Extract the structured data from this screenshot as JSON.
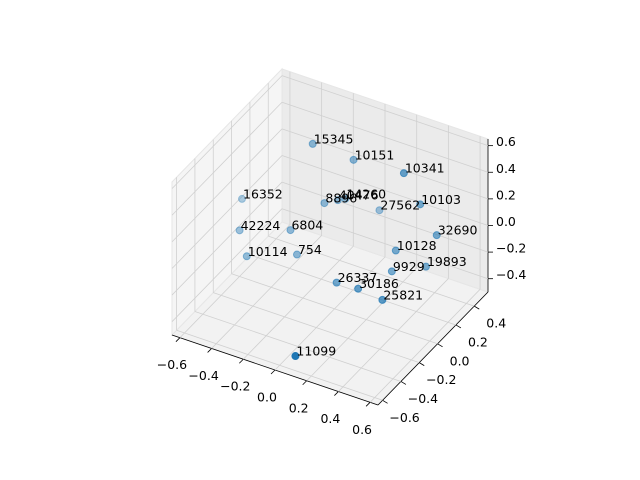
{
  "chart_data": {
    "type": "scatter3d",
    "labels": [
      "15345",
      "10151",
      "10341",
      "16352",
      "8896",
      "40476",
      "14260",
      "27562",
      "10103",
      "42224",
      "6804",
      "32690",
      "754",
      "10114",
      "10128",
      "19893",
      "9929",
      "26337",
      "30186",
      "25821",
      "11099"
    ],
    "x": [
      -0.3,
      -0.1,
      0.2,
      -0.59,
      -0.18,
      -0.13,
      -0.1,
      0.04,
      0.28,
      -0.53,
      -0.29,
      0.39,
      -0.22,
      -0.45,
      0.23,
      0.38,
      0.24,
      0.03,
      0.16,
      0.29,
      0.1
    ],
    "y": [
      0.28,
      0.38,
      0.41,
      0.01,
      0.2,
      0.26,
      0.29,
      0.42,
      0.45,
      -0.12,
      0.02,
      0.44,
      -0.03,
      -0.18,
      0.27,
      0.34,
      0.21,
      -0.03,
      -0.02,
      0.02,
      -0.6
    ],
    "z": [
      0.42,
      0.31,
      0.31,
      0.08,
      0.08,
      0.08,
      0.08,
      -0.04,
      0.08,
      -0.04,
      -0.04,
      -0.1,
      -0.16,
      -0.16,
      -0.16,
      -0.27,
      -0.27,
      -0.27,
      -0.27,
      -0.33,
      -0.39
    ],
    "color": "#1f77b4",
    "xlim": [
      -0.65,
      0.65
    ],
    "ylim": [
      -0.65,
      0.55
    ],
    "zlim": [
      -0.5,
      0.65
    ],
    "xticks": [
      {
        "value": -0.6,
        "label": "−0.6"
      },
      {
        "value": -0.4,
        "label": "−0.4"
      },
      {
        "value": -0.2,
        "label": "−0.2"
      },
      {
        "value": 0.0,
        "label": "0.0"
      },
      0.2,
      0.4,
      0.6
    ],
    "yticks": [
      {
        "value": -0.6,
        "label": "−0.6"
      },
      {
        "value": -0.4,
        "label": "−0.4"
      },
      {
        "value": -0.2,
        "label": "−0.2"
      },
      {
        "value": 0.0,
        "label": "0.0"
      },
      0.2,
      0.4
    ],
    "zticks": [
      {
        "value": -0.4,
        "label": "−0.4"
      },
      {
        "value": -0.2,
        "label": "−0.2"
      },
      {
        "value": 0.0,
        "label": "0.0"
      },
      0.2,
      0.4,
      0.6
    ],
    "grid": true
  }
}
